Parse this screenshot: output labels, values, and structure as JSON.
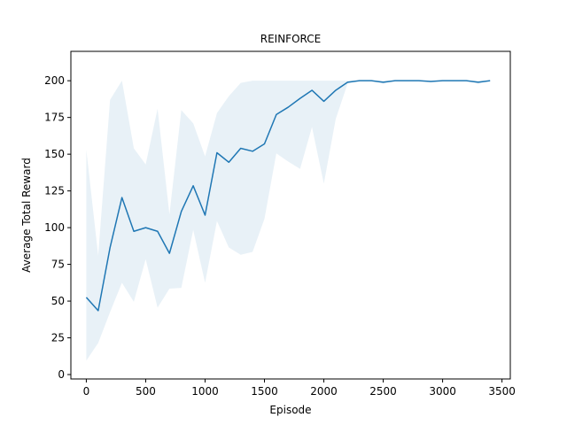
{
  "chart_data": {
    "type": "line",
    "title": "REINFORCE",
    "xlabel": "Episode",
    "ylabel": "Average Total Reward",
    "xlim": [
      -130,
      3570
    ],
    "ylim": [
      -3,
      220
    ],
    "xticks": [
      0,
      500,
      1000,
      1500,
      2000,
      2500,
      3000,
      3500
    ],
    "yticks": [
      0,
      25,
      50,
      75,
      100,
      125,
      150,
      175,
      200
    ],
    "grid": false,
    "colors": {
      "line": "#1f77b4",
      "band": "#1f77b4"
    },
    "x": [
      0,
      100,
      200,
      300,
      400,
      500,
      600,
      700,
      800,
      900,
      1000,
      1100,
      1200,
      1300,
      1400,
      1500,
      1600,
      1700,
      1800,
      1900,
      2000,
      2100,
      2200,
      2300,
      2400,
      2500,
      2600,
      2700,
      2800,
      2900,
      3000,
      3100,
      3200,
      3300,
      3400
    ],
    "series": [
      {
        "values": [
          52.5,
          43.5,
          86.5,
          120.5,
          97.5,
          100,
          97.5,
          82.5,
          111,
          128.5,
          108.5,
          151,
          144.5,
          154,
          152,
          157,
          177,
          182,
          188,
          193.5,
          186,
          193.5,
          199,
          200,
          200,
          199,
          200,
          200,
          200,
          199.5,
          200,
          200,
          200,
          199,
          200
        ],
        "lower": [
          9.5,
          21.5,
          42.5,
          62.5,
          49.5,
          78.5,
          45.5,
          58.5,
          59,
          98.5,
          62.5,
          104.5,
          86.5,
          81.5,
          83.5,
          106,
          150.5,
          145,
          140,
          168.5,
          130,
          174,
          198,
          200,
          200,
          198,
          200,
          200,
          200,
          199,
          200,
          200,
          200,
          198,
          200
        ],
        "upper": [
          153,
          81,
          187,
          200,
          154,
          143,
          181,
          109,
          180,
          171,
          148.5,
          178,
          189.5,
          198.5,
          200,
          200,
          200,
          200,
          200,
          200,
          200,
          200,
          200,
          200,
          200,
          200,
          200,
          200,
          200,
          200,
          200,
          200,
          200,
          200,
          200
        ]
      }
    ]
  }
}
